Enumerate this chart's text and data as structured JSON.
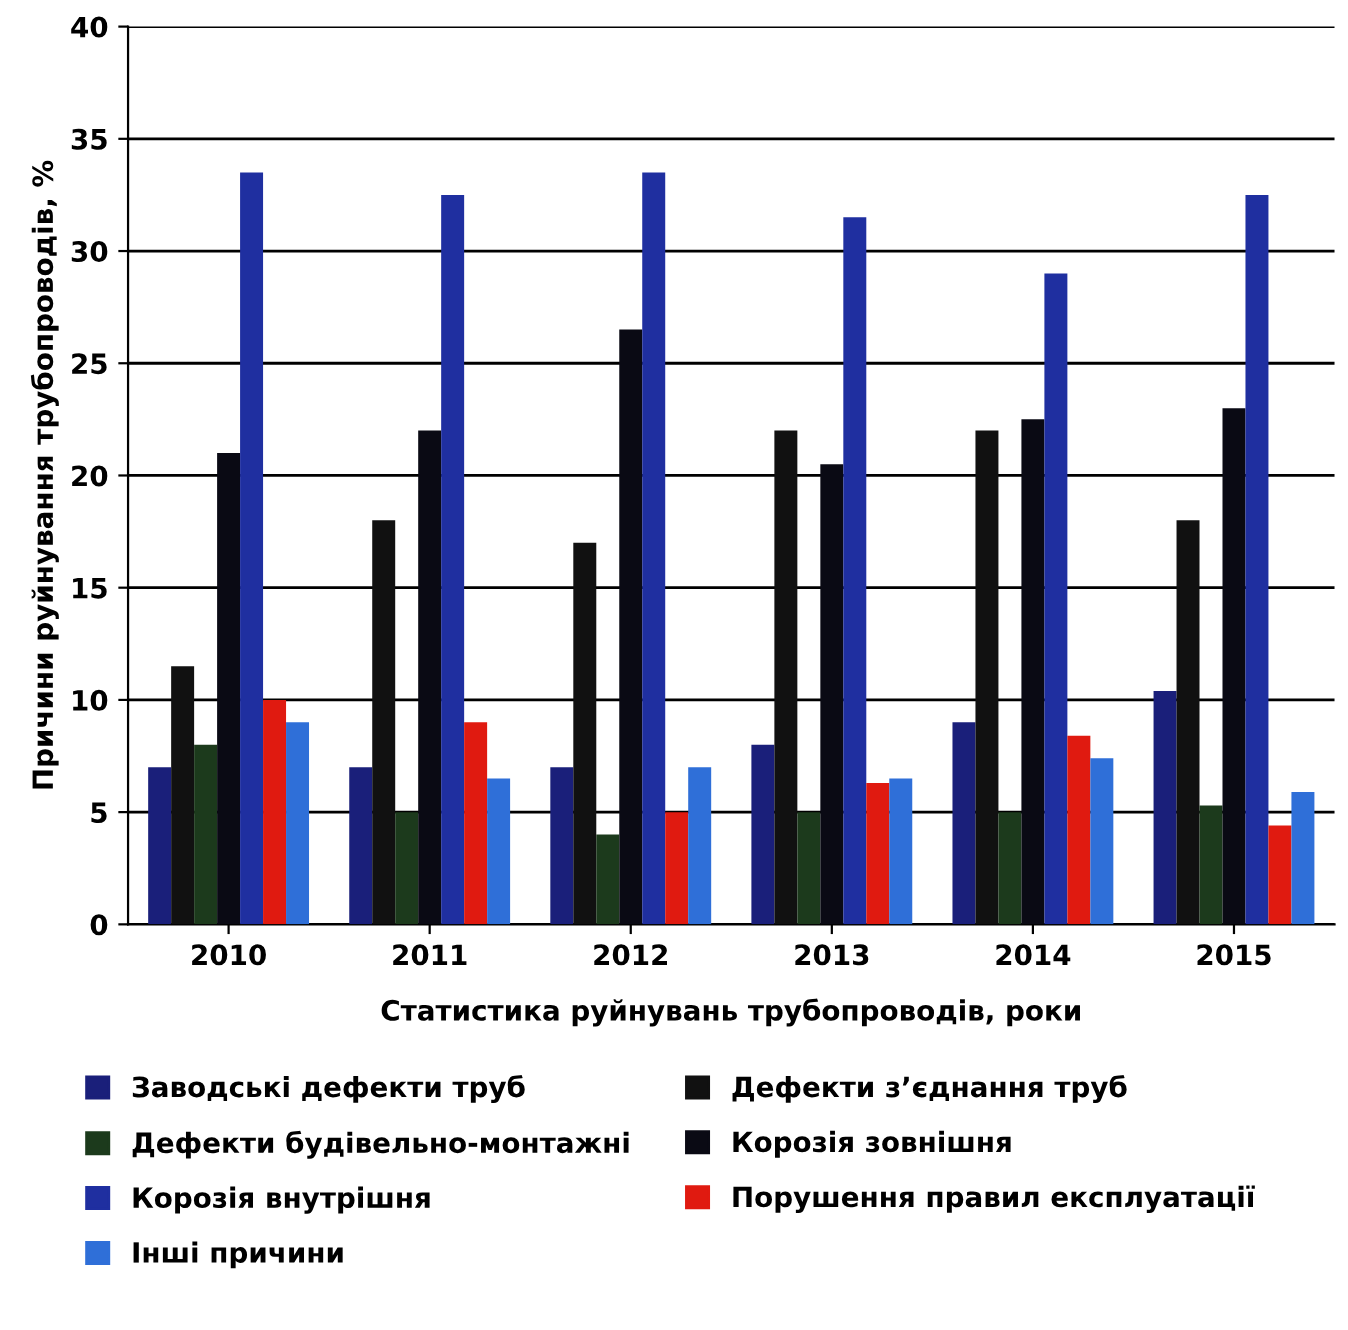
{
  "chart_data": {
    "type": "bar",
    "xlabel": "Статистика руйнувань трубопроводів, роки",
    "ylabel": "Причини руйнування трубопроводів, %",
    "categories": [
      "2010",
      "2011",
      "2012",
      "2013",
      "2014",
      "2015"
    ],
    "series": [
      {
        "name": "Заводські дефекти труб",
        "color": "#1a1f7a",
        "values": [
          7,
          7,
          7,
          8,
          9,
          10.4
        ]
      },
      {
        "name": "Дефекти з’єднання труб",
        "color": "#111111",
        "values": [
          11.5,
          18,
          17,
          22,
          22,
          18
        ]
      },
      {
        "name": "Дефекти будівельно-монтажні",
        "color": "#1c3a1c",
        "values": [
          8,
          5,
          4,
          5,
          5,
          5.3
        ]
      },
      {
        "name": "Корозія зовнішня",
        "color": "#0a0a14",
        "values": [
          21,
          22,
          26.5,
          20.5,
          22.5,
          23
        ]
      },
      {
        "name": "Корозія внутрішня",
        "color": "#1f2fa0",
        "values": [
          33.5,
          32.5,
          33.5,
          31.5,
          29,
          32.5
        ]
      },
      {
        "name": "Порушення правил експлуатації",
        "color": "#e01a10",
        "values": [
          10,
          9,
          5,
          6.3,
          8.4,
          4.4
        ]
      },
      {
        "name": "Інші причини",
        "color": "#2f6fd8",
        "values": [
          9,
          6.5,
          7,
          6.5,
          7.4,
          5.9
        ]
      }
    ],
    "ylim": [
      0,
      40
    ],
    "yticks": [
      0,
      5,
      10,
      15,
      20,
      25,
      30,
      35,
      40
    ],
    "grid": "y",
    "legend": "bottom"
  }
}
